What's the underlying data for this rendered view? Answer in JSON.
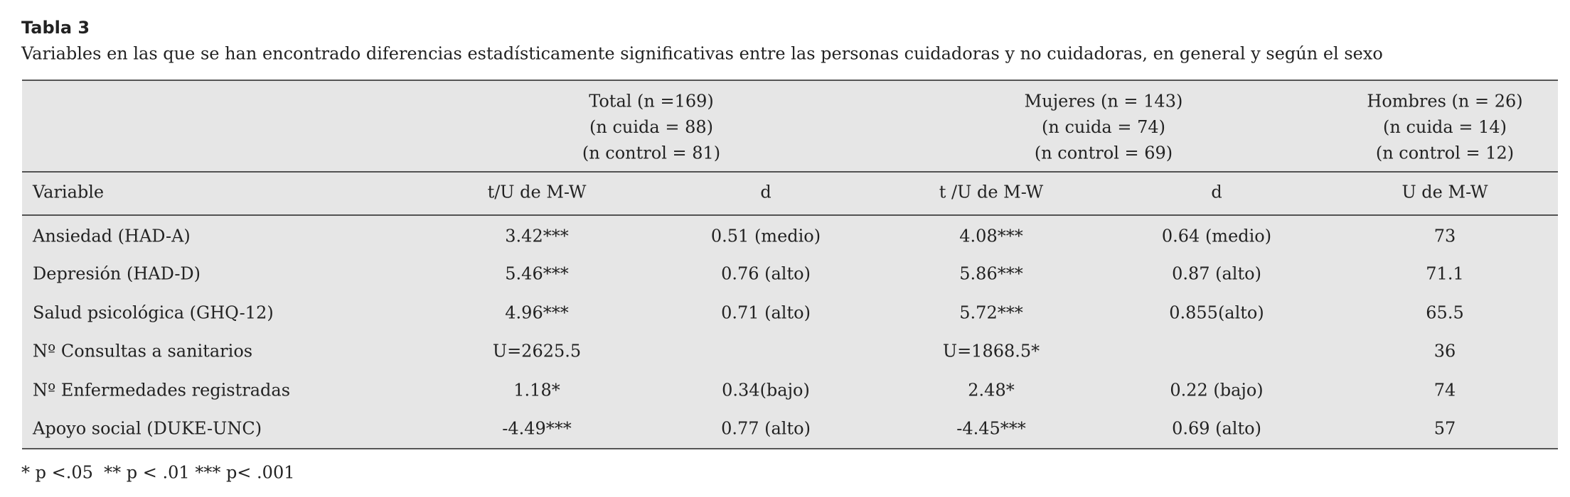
{
  "title": "Tabla 3",
  "caption": "Variables en las que se han encontrado diferencias estadísticamente significativas entre las personas cuidadoras y no cuidadoras, en general y según el sexo",
  "table": {
    "group_headers": [
      [
        "Total (n =169)",
        "(n cuida = 88)",
        "(n control = 81)"
      ],
      [
        "Mujeres (n = 143)",
        "(n cuida = 74)",
        "(n control = 69)"
      ],
      [
        "Hombres (n = 26)",
        "(n cuida = 14)",
        "(n control = 12)"
      ]
    ],
    "columns": [
      "Variable",
      "t/U de M-W",
      "d",
      "t /U de M-W",
      "d",
      "U de M-W"
    ],
    "rows": [
      [
        "Ansiedad (HAD-A)",
        "3.42***",
        "0.51 (medio)",
        "4.08***",
        "0.64 (medio)",
        "73"
      ],
      [
        "Depresión (HAD-D)",
        "5.46***",
        "0.76 (alto)",
        "5.86***",
        "0.87 (alto)",
        "71.1"
      ],
      [
        "Salud psicológica (GHQ-12)",
        "4.96***",
        "0.71 (alto)",
        "5.72***",
        "0.855(alto)",
        "65.5"
      ],
      [
        "Nº Consultas a sanitarios",
        "U=2625.5",
        null,
        "U=1868.5*",
        null,
        "36"
      ],
      [
        "Nº Enfermedades registradas",
        "1.18*",
        "0.34(bajo)",
        "2.48*",
        "0.22 (bajo)",
        "74"
      ],
      [
        "Apoyo social (DUKE-UNC)",
        "-4.49***",
        "0.77 (alto)",
        "-4.45***",
        "0.69 (alto)",
        "57"
      ]
    ]
  },
  "footnote": "* p <.05  ** p < .01 *** p< .001"
}
